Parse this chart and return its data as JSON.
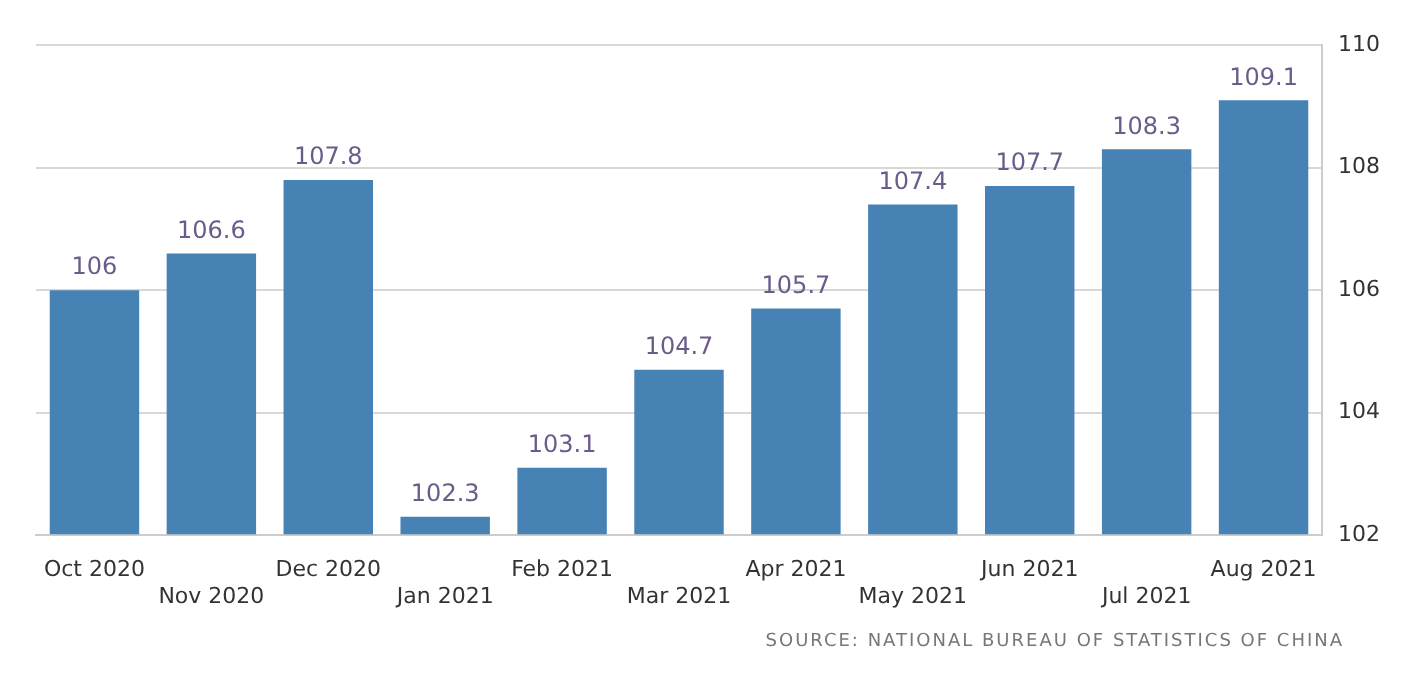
{
  "chart_data": {
    "type": "bar",
    "categories": [
      "Oct 2020",
      "Nov 2020",
      "Dec 2020",
      "Jan 2021",
      "Feb 2021",
      "Mar 2021",
      "Apr 2021",
      "May 2021",
      "Jun 2021",
      "Jul 2021",
      "Aug 2021"
    ],
    "values": [
      106,
      106.6,
      107.8,
      102.3,
      103.1,
      104.7,
      105.7,
      107.4,
      107.7,
      108.3,
      109.1
    ],
    "color": "#4682b4",
    "ylim": [
      102,
      110
    ],
    "yticks": [
      102,
      104,
      106,
      108,
      110
    ],
    "grid": "y",
    "data_labels": true,
    "annotations": [
      "SOURCE: NATIONAL BUREAU OF STATISTICS OF CHINA"
    ]
  }
}
